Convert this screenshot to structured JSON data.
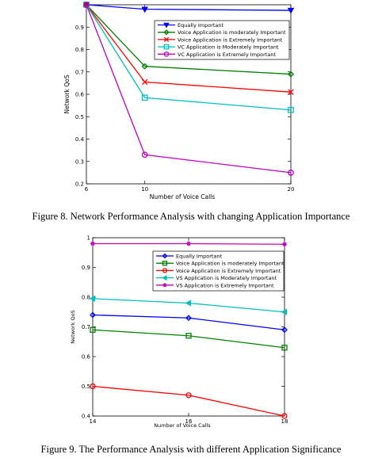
{
  "captions": {
    "fig8": "Figure 8. Network Performance Analysis with changing Application Importance",
    "fig9": "Figure 9.  The Performance Analysis with different Application Significance"
  },
  "chart_data": [
    {
      "type": "line",
      "title": "",
      "xlabel": "Number of Voice Calls",
      "ylabel": "Network QoS",
      "x": [
        6,
        10,
        20
      ],
      "xticks": [
        6,
        10,
        20
      ],
      "yticks": [
        0.2,
        0.3,
        0.4,
        0.5,
        0.6,
        0.7,
        0.8,
        0.9
      ],
      "xlim": [
        6,
        20
      ],
      "ylim": [
        0.2,
        1.0
      ],
      "grid": false,
      "legend_position": "top-right",
      "series": [
        {
          "name": "Equally Important",
          "values": [
            1.0,
            0.98,
            0.975
          ],
          "color": "#0000ff",
          "marker": "triangle-down"
        },
        {
          "name": "Voice Application is moderately Important",
          "values": [
            1.0,
            0.725,
            0.69
          ],
          "color": "#008000",
          "marker": "diamond"
        },
        {
          "name": "Voice Application is Extremely Important",
          "values": [
            1.0,
            0.655,
            0.61
          ],
          "color": "#ff0000",
          "marker": "x"
        },
        {
          "name": "VC Application is Moderately Important",
          "values": [
            1.0,
            0.585,
            0.53
          ],
          "color": "#00bfbf",
          "marker": "square"
        },
        {
          "name": "VC Application is Extremely Important",
          "values": [
            1.0,
            0.33,
            0.25
          ],
          "color": "#bf00bf",
          "marker": "circle"
        }
      ]
    },
    {
      "type": "line",
      "title": "",
      "xlabel": "Number of Voice Calls",
      "ylabel": "Network QoS",
      "x": [
        14,
        16,
        18
      ],
      "xticks": [
        14,
        16,
        18
      ],
      "yticks": [
        0.4,
        0.5,
        0.6,
        0.7,
        0.8,
        0.9,
        1
      ],
      "xlim": [
        14,
        18
      ],
      "ylim": [
        0.4,
        1.0
      ],
      "grid": false,
      "legend_position": "top-right",
      "series": [
        {
          "name": "Equally Important",
          "values": [
            0.74,
            0.73,
            0.69
          ],
          "color": "#0000ff",
          "marker": "diamond"
        },
        {
          "name": "Voice Application is moderately Important",
          "values": [
            0.69,
            0.67,
            0.63
          ],
          "color": "#008000",
          "marker": "square"
        },
        {
          "name": "Voice Application is Extremely Important",
          "values": [
            0.5,
            0.47,
            0.4
          ],
          "color": "#ff0000",
          "marker": "circle"
        },
        {
          "name": "VS Application is Moderately Important",
          "values": [
            0.795,
            0.78,
            0.75
          ],
          "color": "#00bfbf",
          "marker": "triangle-left"
        },
        {
          "name": "VS Application is Extremely Important",
          "values": [
            0.98,
            0.98,
            0.978
          ],
          "color": "#bf00bf",
          "marker": "star"
        }
      ]
    }
  ]
}
